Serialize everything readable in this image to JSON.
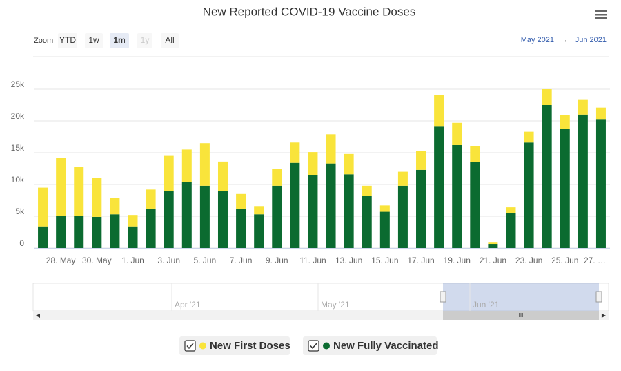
{
  "chart_data": {
    "type": "stacked_bar",
    "title": "New Reported COVID-19 Vaccine Doses",
    "zoom_label": "Zoom",
    "zoom_buttons": [
      "YTD",
      "1w",
      "1m",
      "1y",
      "All"
    ],
    "range_from": "May 2021",
    "range_arrow": "→",
    "range_to": "Jun 2021",
    "navigator_labels": [
      "Apr '21",
      "May '21",
      "Jun '21"
    ],
    "categories": [
      null,
      "28. May",
      null,
      "30. May",
      null,
      "1. Jun",
      null,
      "3. Jun",
      null,
      "5. Jun",
      null,
      "7. Jun",
      null,
      "9. Jun",
      null,
      "11. Jun",
      null,
      "13. Jun",
      null,
      "15. Jun",
      null,
      "17. Jun",
      null,
      "19. Jun",
      null,
      "21. Jun",
      null,
      "23. Jun",
      null,
      "25. Jun",
      null,
      "27. …"
    ],
    "series": [
      {
        "name": "New First Doses",
        "color": "#f9e43b",
        "values": [
          6100,
          9200,
          7800,
          6100,
          2600,
          1800,
          3000,
          5500,
          5100,
          6700,
          4600,
          2300,
          1300,
          2600,
          3200,
          3600,
          4600,
          3200,
          1600,
          1000,
          2200,
          3000,
          5000,
          3500,
          2500,
          200,
          900,
          1700,
          2500,
          2200,
          2300,
          1800
        ]
      },
      {
        "name": "New Fully Vaccinated",
        "color": "#0b6b30",
        "values": [
          3400,
          5000,
          5000,
          4900,
          5300,
          3400,
          6200,
          9000,
          10400,
          9800,
          9000,
          6200,
          5300,
          9800,
          13400,
          11500,
          13300,
          11600,
          8200,
          5700,
          9800,
          12300,
          19100,
          16200,
          13500,
          650,
          5500,
          16600,
          22500,
          18700,
          21000,
          20300
        ]
      }
    ],
    "ylim": [
      0,
      30000
    ],
    "yticks": [
      0,
      {
        "value": 5000,
        "label": "5k"
      },
      {
        "value": 10000,
        "label": "10k"
      },
      {
        "value": 15000,
        "label": "15k"
      },
      {
        "value": 20000,
        "label": "20k"
      },
      {
        "value": 25000,
        "label": "25k"
      }
    ],
    "grid": true
  }
}
